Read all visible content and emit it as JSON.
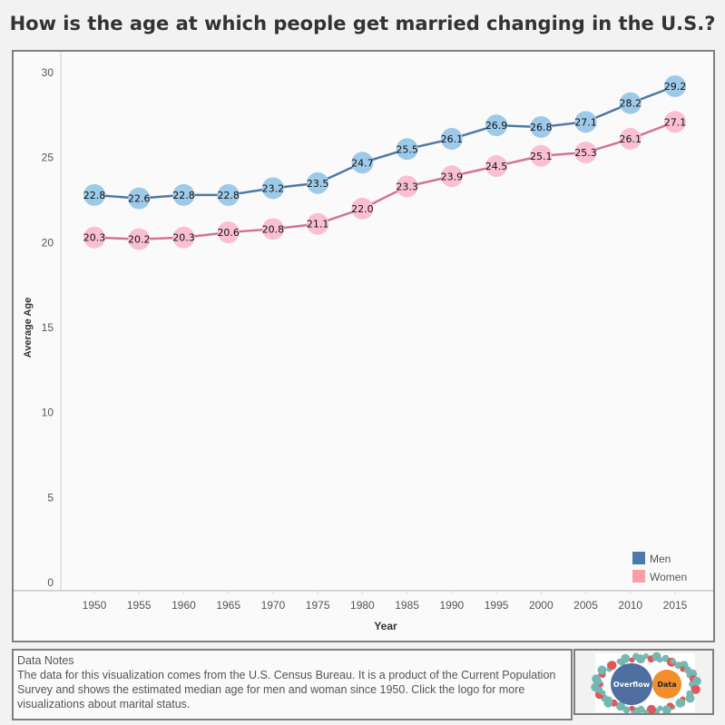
{
  "title": "How is the age at which people get married changing in the U.S.?",
  "chart_data": {
    "type": "line",
    "title": "How is the age at which people get married changing in the U.S.?",
    "xlabel": "Year",
    "ylabel": "Average Age",
    "x": [
      1950,
      1955,
      1960,
      1965,
      1970,
      1975,
      1980,
      1985,
      1990,
      1995,
      2000,
      2005,
      2010,
      2015
    ],
    "x_tick_labels": [
      "1950",
      "1955",
      "1960",
      "1965",
      "1970",
      "1975",
      "1980",
      "1985",
      "1990",
      "1995",
      "2000",
      "2005",
      "2010",
      "2015"
    ],
    "y_ticks": [
      "0",
      "5",
      "10",
      "15",
      "20",
      "25",
      "30"
    ],
    "ylim": [
      0,
      30
    ],
    "grid": false,
    "legend_placement": "bottom-right",
    "series": [
      {
        "name": "Men",
        "line_color": "#4e79a7",
        "marker_color": "#9ecae9",
        "values": [
          22.8,
          22.6,
          22.8,
          22.8,
          23.2,
          23.5,
          24.7,
          25.5,
          26.1,
          26.9,
          26.8,
          27.1,
          28.2,
          29.2
        ],
        "labels": [
          "22.8",
          "22.6",
          "22.8",
          "22.8",
          "23.2",
          "23.5",
          "24.7",
          "25.5",
          "26.1",
          "26.9",
          "26.8",
          "27.1",
          "28.2",
          "29.2"
        ]
      },
      {
        "name": "Women",
        "line_color": "#d37295",
        "marker_color": "#fabfd2",
        "values": [
          20.3,
          20.2,
          20.3,
          20.6,
          20.8,
          21.1,
          22.0,
          23.3,
          23.9,
          24.5,
          25.1,
          25.3,
          26.1,
          27.1
        ],
        "labels": [
          "20.3",
          "20.2",
          "20.3",
          "20.6",
          "20.8",
          "21.1",
          "22.0",
          "23.3",
          "23.9",
          "24.5",
          "25.1",
          "25.3",
          "26.1",
          "27.1"
        ]
      }
    ],
    "legend": [
      {
        "label": "Men",
        "color": "#4e79a7"
      },
      {
        "label": "Women",
        "color": "#ff9da7"
      }
    ]
  },
  "notes": {
    "heading": "Data Notes",
    "body": "The data for this visualization comes from the U.S. Census Bureau. It is a product of the Current Population Survey and shows the estimated median age for men and woman since 1950. Click the logo for more visualizations about marital status."
  },
  "logo": {
    "word1": "Overflow",
    "word2": "Data"
  }
}
